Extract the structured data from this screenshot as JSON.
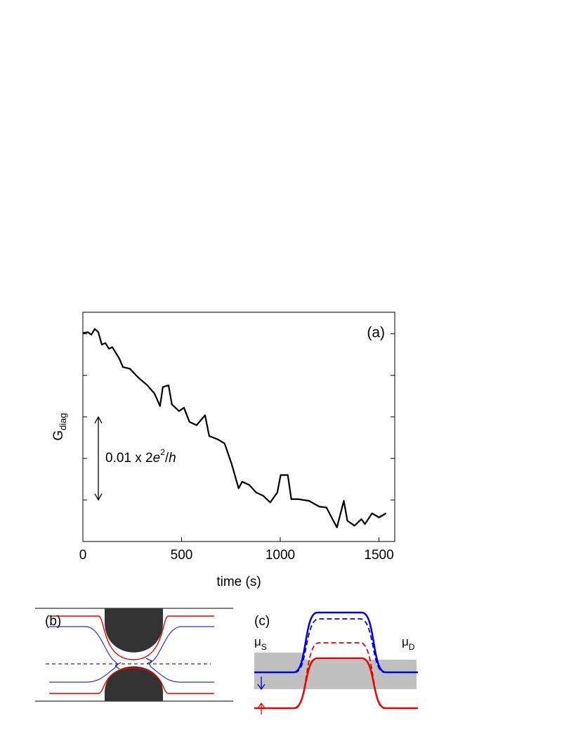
{
  "chart_data": {
    "type": "line",
    "panel_label": "(a)",
    "xlabel": "time (s)",
    "ylabel": "G",
    "ylabel_sub": "diag",
    "annotation": [
      "0.01 x 2",
      "e",
      "2",
      "/",
      "h"
    ],
    "x": [
      0,
      25,
      43,
      60,
      78,
      96,
      114,
      132,
      149,
      185,
      203,
      238,
      274,
      292,
      327,
      363,
      391,
      405,
      434,
      451,
      487,
      512,
      540,
      576,
      619,
      640,
      683,
      718,
      754,
      789,
      807,
      843,
      878,
      914,
      949,
      985,
      1002,
      1038,
      1056,
      1091,
      1145,
      1198,
      1234,
      1269,
      1287,
      1322,
      1340,
      1376,
      1411,
      1429,
      1465,
      1500,
      1536
    ],
    "series": [
      {
        "color": "#000000",
        "values": [
          0.0251,
          0.0252,
          0.0249,
          0.0256,
          0.0252,
          0.0237,
          0.0239,
          0.0232,
          0.0234,
          0.022,
          0.021,
          0.0208,
          0.0199,
          0.0195,
          0.0188,
          0.0178,
          0.0163,
          0.0186,
          0.0188,
          0.0165,
          0.0157,
          0.0161,
          0.0144,
          0.014,
          0.0152,
          0.0127,
          0.0123,
          0.0118,
          0.0093,
          0.0064,
          0.0072,
          0.0068,
          0.0059,
          0.0055,
          0.0047,
          0.0059,
          0.008,
          0.008,
          0.0051,
          0.0051,
          0.0049,
          0.0042,
          0.0041,
          0.0025,
          0.0017,
          0.0049,
          0.0025,
          0.0019,
          0.0027,
          0.0021,
          0.0034,
          0.0029,
          0.0034
        ]
      }
    ],
    "xlim": [
      0,
      1580
    ],
    "xticks": [
      0,
      500,
      1000,
      1500
    ],
    "ylim": [
      0,
      0.0276
    ],
    "yticks": [
      0.005,
      0.01,
      0.015,
      0.02,
      0.025
    ]
  },
  "panel_b": {
    "label": "(b)"
  },
  "panel_c": {
    "label": "(c)",
    "mu_s": [
      "μ",
      "S"
    ],
    "mu_d": [
      "μ",
      "D"
    ]
  }
}
